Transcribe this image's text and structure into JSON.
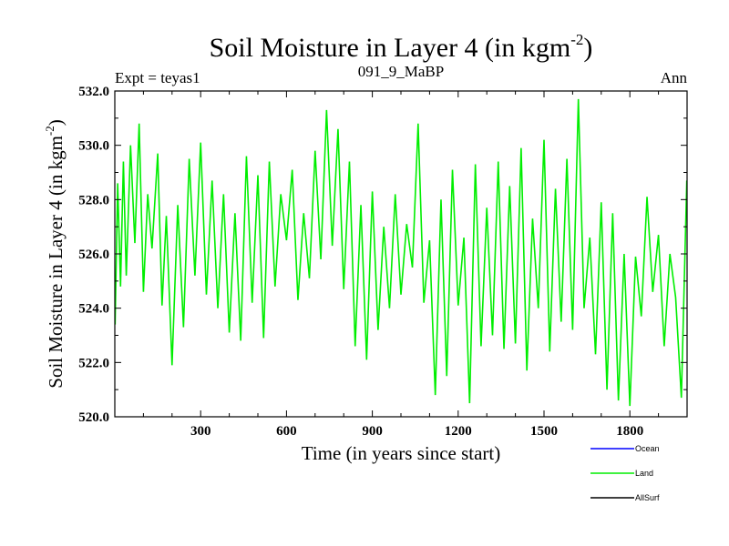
{
  "chart_data": {
    "type": "line",
    "title": "Soil Moisture in Layer 4 (in kgm",
    "title_superscript": "-2",
    "title_suffix": ")",
    "subtitle_left": "Expt = teyas1",
    "subtitle_center": "091_9_MaBP",
    "subtitle_right": "Ann",
    "xlabel": "Time (in years since start)",
    "ylabel": "Soil Moisture in Layer 4 (in kgm",
    "ylabel_superscript": "-2",
    "ylabel_suffix": ")",
    "xlim": [
      0,
      2000
    ],
    "ylim": [
      520.0,
      532.0
    ],
    "xticks": [
      300,
      600,
      900,
      1200,
      1500,
      1800
    ],
    "xtick_labels": [
      "300",
      "600",
      "900",
      "1200",
      "1500",
      "1800"
    ],
    "yticks": [
      520,
      522,
      524,
      526,
      528,
      530,
      532
    ],
    "ytick_labels": [
      "520.0",
      "522.0",
      "524.0",
      "526.0",
      "528.0",
      "530.0",
      "532.0"
    ],
    "legend_position": "bottom-right outside",
    "series": [
      {
        "name": "Ocean",
        "color": "#0000ff",
        "visible_in_plot": false,
        "x": [],
        "y": []
      },
      {
        "name": "Land",
        "color": "#00ee00",
        "visible_in_plot": true,
        "x": [
          1,
          10,
          20,
          30,
          40,
          55,
          70,
          85,
          100,
          115,
          130,
          150,
          165,
          180,
          200,
          220,
          240,
          260,
          280,
          300,
          320,
          340,
          360,
          380,
          400,
          420,
          440,
          460,
          480,
          500,
          520,
          540,
          560,
          580,
          600,
          620,
          640,
          660,
          680,
          700,
          720,
          740,
          760,
          780,
          800,
          820,
          840,
          860,
          880,
          900,
          920,
          940,
          960,
          980,
          1000,
          1020,
          1040,
          1060,
          1080,
          1100,
          1120,
          1140,
          1160,
          1180,
          1200,
          1220,
          1240,
          1260,
          1280,
          1300,
          1320,
          1340,
          1360,
          1380,
          1400,
          1420,
          1440,
          1460,
          1480,
          1500,
          1520,
          1540,
          1560,
          1580,
          1600,
          1620,
          1640,
          1660,
          1680,
          1700,
          1720,
          1740,
          1760,
          1780,
          1800,
          1820,
          1840,
          1860,
          1880,
          1900,
          1920,
          1940,
          1960,
          1980,
          1999
        ],
        "y": [
          523.4,
          528.6,
          524.8,
          529.4,
          525.2,
          530.0,
          526.4,
          530.8,
          524.6,
          528.2,
          526.2,
          529.7,
          524.1,
          527.4,
          521.9,
          527.8,
          523.3,
          529.5,
          525.2,
          530.1,
          524.5,
          528.7,
          524.0,
          528.2,
          523.1,
          527.5,
          522.8,
          529.6,
          524.2,
          528.9,
          522.9,
          529.4,
          524.8,
          528.2,
          526.5,
          529.1,
          524.3,
          527.5,
          525.1,
          529.8,
          525.8,
          531.3,
          526.3,
          530.6,
          524.7,
          529.4,
          522.6,
          527.8,
          522.1,
          528.3,
          523.2,
          527.0,
          524.0,
          528.2,
          524.5,
          527.1,
          525.5,
          530.8,
          524.2,
          526.5,
          520.8,
          528.0,
          521.5,
          529.1,
          524.1,
          526.6,
          520.5,
          529.3,
          522.6,
          527.7,
          523.0,
          529.4,
          522.5,
          528.5,
          522.7,
          529.9,
          521.7,
          527.3,
          524.0,
          530.2,
          522.4,
          528.4,
          523.5,
          529.5,
          523.2,
          531.7,
          524.0,
          526.6,
          522.3,
          527.9,
          521.0,
          527.5,
          520.6,
          526.0,
          520.4,
          525.9,
          523.7,
          528.1,
          524.6,
          526.7,
          522.6,
          526.0,
          524.4,
          520.7,
          528.7
        ]
      },
      {
        "name": "AllSurf",
        "color": "#000000",
        "visible_in_plot": false,
        "x": [],
        "y": []
      }
    ]
  }
}
